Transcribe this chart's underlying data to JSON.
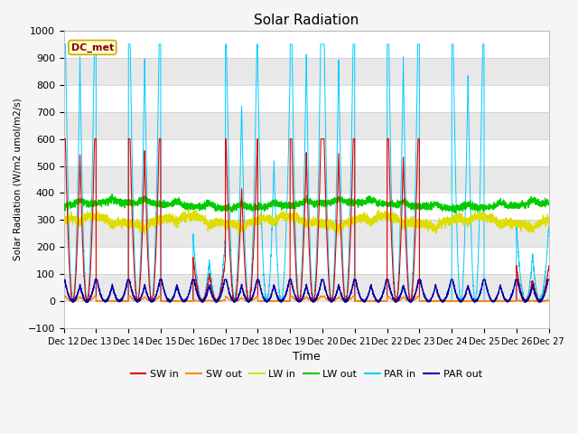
{
  "title": "Solar Radiation",
  "ylabel": "Solar Radiation (W/m2 umol/m2/s)",
  "xlabel": "Time",
  "ylim": [
    -100,
    1000
  ],
  "annotation": "DC_met",
  "fig_bg": "#f5f5f5",
  "plot_bg": "#f0f0f0",
  "band_colors": [
    "#ffffff",
    "#e8e8e8"
  ],
  "colors": {
    "SW in": "#dd0000",
    "SW out": "#ff8800",
    "LW in": "#dddd00",
    "LW out": "#00cc00",
    "PAR in": "#00ccff",
    "PAR out": "#0000aa"
  },
  "yticks": [
    -100,
    0,
    100,
    200,
    300,
    400,
    500,
    600,
    700,
    800,
    900,
    1000
  ],
  "xtick_days": [
    12,
    13,
    14,
    15,
    16,
    17,
    18,
    19,
    20,
    21,
    22,
    23,
    24,
    25,
    26,
    27
  ],
  "n_points_per_day": 288,
  "n_days": 15
}
